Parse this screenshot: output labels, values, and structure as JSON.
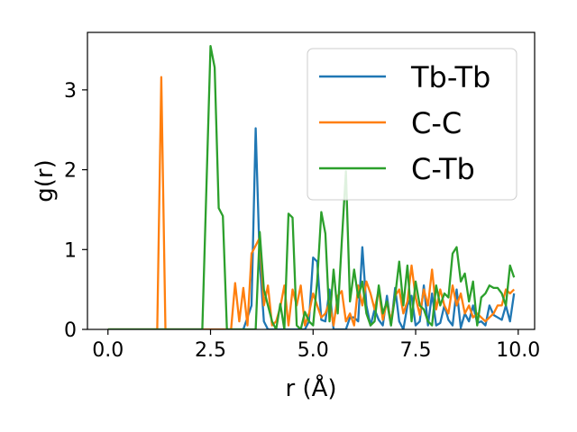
{
  "chart_data": {
    "type": "line",
    "title": "",
    "xlabel": "r (Å)",
    "ylabel": "g(r)",
    "xlim": [
      -0.5,
      10.4
    ],
    "ylim": [
      0,
      3.72
    ],
    "xticks": [
      0.0,
      2.5,
      5.0,
      7.5,
      10.0
    ],
    "xtick_labels": [
      "0.0",
      "2.5",
      "5.0",
      "7.5",
      "10.0"
    ],
    "yticks": [
      0,
      1,
      2,
      3
    ],
    "ytick_labels": [
      "0",
      "1",
      "2",
      "3"
    ],
    "grid": false,
    "legend_position": "top-right",
    "series": [
      {
        "name": "Tb-Tb",
        "color": "#1f77b4",
        "x": [
          0,
          3.3,
          3.4,
          3.5,
          3.6,
          3.7,
          3.8,
          3.9,
          4.0,
          4.1,
          4.2,
          4.3,
          4.4,
          4.5,
          4.6,
          4.7,
          4.8,
          4.9,
          5.0,
          5.1,
          5.2,
          5.3,
          5.4,
          5.5,
          5.6,
          5.7,
          5.8,
          5.9,
          6.0,
          6.1,
          6.2,
          6.3,
          6.4,
          6.5,
          6.6,
          6.7,
          6.8,
          6.9,
          7.0,
          7.1,
          7.2,
          7.3,
          7.4,
          7.5,
          7.6,
          7.7,
          7.8,
          7.9,
          8.0,
          8.1,
          8.2,
          8.3,
          8.4,
          8.5,
          8.6,
          8.7,
          8.8,
          8.9,
          9.0,
          9.1,
          9.2,
          9.3,
          9.4,
          9.5,
          9.6,
          9.7,
          9.8,
          9.9
        ],
        "y": [
          0,
          0,
          0.15,
          0.3,
          2.52,
          0.85,
          0.1,
          0,
          0,
          0,
          0,
          0,
          0,
          0,
          0,
          0,
          0,
          0.1,
          0.9,
          0.85,
          0.12,
          0.1,
          0.5,
          0,
          0,
          0,
          0,
          0.15,
          0.15,
          0.1,
          1.03,
          0.3,
          0.05,
          0.25,
          0.12,
          0.05,
          0.42,
          0.05,
          0.52,
          0.1,
          0,
          0.3,
          0.42,
          0.05,
          0.1,
          0.55,
          0.05,
          0.45,
          0.05,
          0.08,
          0.3,
          0.12,
          0.05,
          0.5,
          0.02,
          0.2,
          0.1,
          0.3,
          0.08,
          0.1,
          0.05,
          0.3,
          0.18,
          0.15,
          0.12,
          0.3,
          0.1,
          0.45
        ]
      },
      {
        "name": "C-C",
        "color": "#ff7f0e",
        "x": [
          0,
          1.2,
          1.3,
          1.4,
          3.0,
          3.1,
          3.2,
          3.3,
          3.4,
          3.5,
          3.6,
          3.7,
          3.8,
          3.9,
          4.0,
          4.1,
          4.2,
          4.3,
          4.4,
          4.5,
          4.6,
          4.7,
          4.8,
          4.9,
          5.0,
          5.1,
          5.2,
          5.3,
          5.4,
          5.5,
          5.6,
          5.7,
          5.8,
          5.9,
          6.0,
          6.1,
          6.2,
          6.3,
          6.4,
          6.5,
          6.6,
          6.7,
          6.8,
          6.9,
          7.0,
          7.1,
          7.2,
          7.3,
          7.4,
          7.5,
          7.6,
          7.7,
          7.8,
          7.9,
          8.0,
          8.1,
          8.2,
          8.3,
          8.4,
          8.5,
          8.6,
          8.7,
          8.8,
          8.9,
          9.0,
          9.1,
          9.2,
          9.3,
          9.4,
          9.5,
          9.6,
          9.7,
          9.8,
          9.9
        ],
        "y": [
          0,
          0,
          3.16,
          0,
          0,
          0.58,
          0.1,
          0.52,
          0.05,
          0.95,
          1.05,
          1.15,
          0.3,
          0.55,
          0.05,
          0.1,
          0.28,
          0.55,
          0.05,
          0.5,
          0.3,
          0.55,
          0.05,
          0.2,
          0.45,
          0.3,
          0.15,
          0.2,
          0.35,
          0.05,
          0.42,
          0.48,
          0.1,
          0.2,
          0.05,
          0.55,
          0.3,
          0.6,
          0.45,
          0.25,
          0.5,
          0.12,
          0.35,
          0.1,
          0.42,
          0.5,
          0.2,
          0.35,
          0.8,
          0.4,
          0.18,
          0.5,
          0.3,
          0.75,
          0.25,
          0.5,
          0.3,
          0.2,
          0.55,
          0.3,
          0.45,
          0.2,
          0.3,
          0.15,
          0.2,
          0.15,
          0.1,
          0.15,
          0.2,
          0.3,
          0.3,
          0.5,
          0.45,
          0.5
        ]
      },
      {
        "name": "C-Tb",
        "color": "#2ca02c",
        "x": [
          0,
          2.3,
          2.5,
          2.6,
          2.7,
          2.8,
          2.9,
          3.6,
          3.7,
          3.8,
          3.9,
          4.0,
          4.1,
          4.2,
          4.3,
          4.4,
          4.5,
          4.6,
          4.7,
          4.8,
          4.9,
          5.0,
          5.1,
          5.2,
          5.3,
          5.4,
          5.5,
          5.6,
          5.7,
          5.8,
          5.9,
          6.0,
          6.1,
          6.2,
          6.3,
          6.4,
          6.5,
          6.6,
          6.7,
          6.8,
          6.9,
          7.0,
          7.1,
          7.2,
          7.3,
          7.4,
          7.5,
          7.6,
          7.7,
          7.8,
          7.9,
          8.0,
          8.1,
          8.2,
          8.3,
          8.4,
          8.5,
          8.6,
          8.7,
          8.8,
          8.9,
          9.0,
          9.1,
          9.2,
          9.3,
          9.4,
          9.5,
          9.6,
          9.7,
          9.8,
          9.9
        ],
        "y": [
          0,
          0,
          3.55,
          3.28,
          1.52,
          1.42,
          0,
          0,
          1.22,
          0.5,
          0.3,
          0.1,
          0,
          0.32,
          0,
          1.45,
          1.4,
          0.05,
          0,
          0.22,
          0.1,
          0.05,
          0.6,
          1.47,
          1.2,
          0.1,
          0.75,
          0.2,
          1.1,
          1.98,
          0.35,
          0.75,
          0.4,
          0.6,
          0.2,
          0.05,
          0.1,
          0.55,
          0.2,
          0.35,
          0.05,
          0.42,
          0.85,
          0.3,
          0.8,
          0.1,
          0.6,
          0.3,
          0.25,
          0.1,
          0.05,
          0.55,
          0.3,
          0.45,
          0.4,
          0.95,
          1.03,
          0.6,
          0.7,
          0.35,
          0.6,
          0.05,
          0.4,
          0.45,
          0.55,
          0.52,
          0.52,
          0.45,
          0.3,
          0.8,
          0.65
        ]
      }
    ]
  }
}
